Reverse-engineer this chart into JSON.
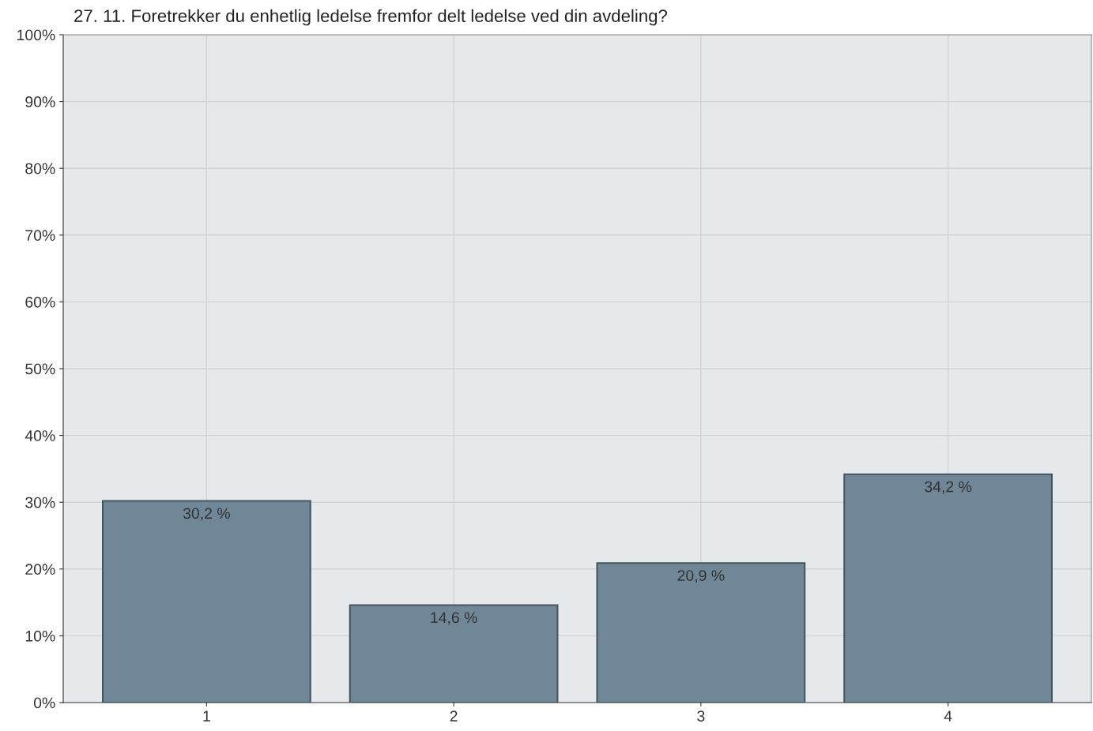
{
  "chart_data": {
    "type": "bar",
    "title": "27. 11. Foretrekker du enhetlig ledelse fremfor delt ledelse ved din avdeling?",
    "categories": [
      "1",
      "2",
      "3",
      "4"
    ],
    "values": [
      30.2,
      14.6,
      20.9,
      34.2
    ],
    "value_labels": [
      "30,2 %",
      "14,6 %",
      "20,9 %",
      "34,2 %"
    ],
    "color": "#6f8796",
    "ylim": [
      0,
      100
    ],
    "yticks": [
      {
        "value": 0,
        "label": "0%"
      },
      {
        "value": 10,
        "label": "10%"
      },
      {
        "value": 20,
        "label": "20%"
      },
      {
        "value": 30,
        "label": "30%"
      },
      {
        "value": 40,
        "label": "40%"
      },
      {
        "value": 50,
        "label": "50%"
      },
      {
        "value": 60,
        "label": "60%"
      },
      {
        "value": 70,
        "label": "70%"
      },
      {
        "value": 80,
        "label": "80%"
      },
      {
        "value": 90,
        "label": "90%"
      },
      {
        "value": 100,
        "label": "100%"
      }
    ],
    "grid": true
  }
}
